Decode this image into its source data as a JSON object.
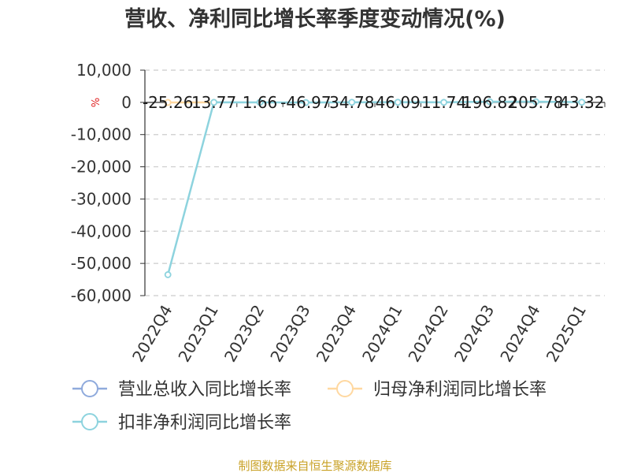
{
  "chart_data": {
    "type": "line",
    "title": "营收、净利同比增长率季度变动情况(%)",
    "y_unit": "%",
    "categories": [
      "2022Q4",
      "2023Q1",
      "2023Q2",
      "2023Q3",
      "2023Q4",
      "2024Q1",
      "2024Q2",
      "2024Q3",
      "2024Q4",
      "2025Q1"
    ],
    "ylim": [
      -60000,
      10000
    ],
    "yticks": [
      10000,
      0,
      -10000,
      -20000,
      -30000,
      -40000,
      -50000,
      -60000
    ],
    "ytick_labels": [
      "10,000",
      "0",
      "-10,000",
      "-20,000",
      "-30,000",
      "-40,000",
      "-50,000",
      "-60,000"
    ],
    "grid": true,
    "legend_position": "bottom",
    "series": [
      {
        "name": "营业总收入同比增长率",
        "color": "#8faadc",
        "values": [
          null,
          null,
          null,
          null,
          null,
          null,
          null,
          null,
          null,
          null
        ]
      },
      {
        "name": "归母净利润同比增长率",
        "color": "#ffd8a0",
        "values": [
          -25.26,
          13.77,
          null,
          null,
          null,
          null,
          null,
          null,
          null,
          null
        ]
      },
      {
        "name": "扣非净利润同比增长率",
        "color": "#8dd3de",
        "values": [
          -53500,
          13.77,
          1.66,
          -46.97,
          34.78,
          46.09,
          11.74,
          196.82,
          205.78,
          43.32
        ]
      }
    ],
    "data_labels": [
      "-25.26",
      "13.77",
      "1.66",
      "-46.97",
      "34.78",
      "46.09",
      "11.74",
      "196.82",
      "205.78",
      "43.32"
    ]
  },
  "source": "制图数据来自恒生聚源数据库"
}
